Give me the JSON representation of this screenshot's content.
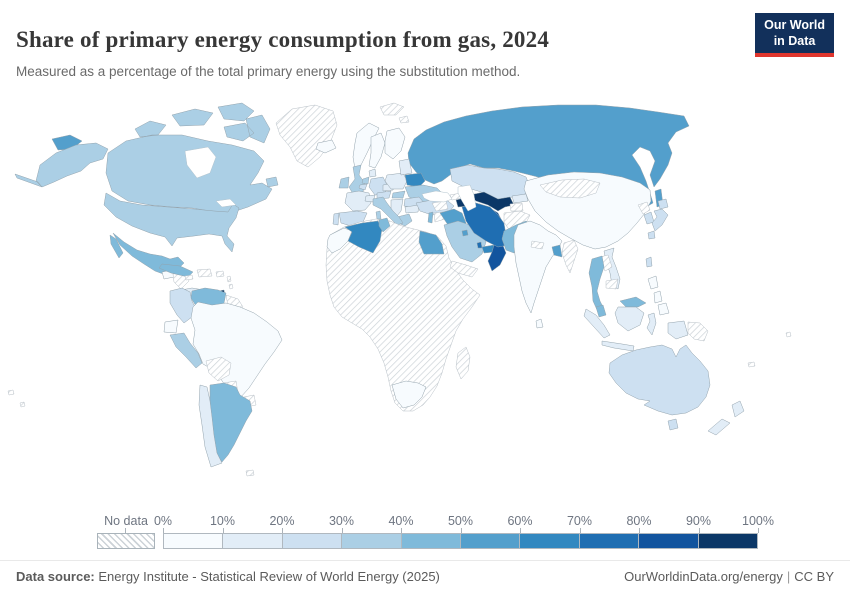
{
  "header": {
    "title": "Share of primary energy consumption from gas, 2024",
    "subtitle": "Measured as a percentage of the total primary energy using the substitution method.",
    "logo": {
      "line1": "Our World",
      "line2": "in Data"
    }
  },
  "legend": {
    "no_data_label": "No data",
    "ticks": [
      "0%",
      "10%",
      "20%",
      "30%",
      "40%",
      "50%",
      "60%",
      "70%",
      "80%",
      "90%",
      "100%"
    ]
  },
  "footer": {
    "source_label": "Data source:",
    "source_text": " Energy Institute - Statistical Review of World Energy (2025)",
    "site": "OurWorldinData.org/energy",
    "separator": "|",
    "license": "CC BY"
  },
  "chart_data": {
    "type": "heatmap",
    "variant": "choropleth-world-map",
    "title": "Share of primary energy consumption from gas, 2024",
    "unit": "%",
    "color_scale": {
      "min": 0,
      "max": 100,
      "step": 10,
      "colors": [
        "#f7fbfe",
        "#e2edf7",
        "#cde0f1",
        "#abcfe5",
        "#7fbada",
        "#539fcc",
        "#3288c0",
        "#1f6eb2",
        "#12549e",
        "#0b3767"
      ],
      "no_data_style": "gray-diagonal-hatch"
    },
    "countries": [
      {
        "name": "russia",
        "value": 55
      },
      {
        "name": "canada",
        "value": 37
      },
      {
        "name": "usa",
        "value": 34
      },
      {
        "name": "greenland",
        "value": null
      },
      {
        "name": "svalbard",
        "value": null
      },
      {
        "name": "iceland",
        "value": 1
      },
      {
        "name": "mexico",
        "value": 45
      },
      {
        "name": "guatemala",
        "value": 4
      },
      {
        "name": "honduras-nicaragua",
        "value": null
      },
      {
        "name": "costa-rica-panama",
        "value": 12
      },
      {
        "name": "cuba",
        "value": 46
      },
      {
        "name": "haiti-dominican-republic",
        "value": null
      },
      {
        "name": "jamaica",
        "value": null
      },
      {
        "name": "puerto-rico",
        "value": null
      },
      {
        "name": "lesser-antilles",
        "value": null
      },
      {
        "name": "trinidad-and-tobago",
        "value": 93
      },
      {
        "name": "colombia",
        "value": 25
      },
      {
        "name": "venezuela",
        "value": 46
      },
      {
        "name": "guyana-suriname",
        "value": null
      },
      {
        "name": "ecuador",
        "value": 5
      },
      {
        "name": "peru",
        "value": 33
      },
      {
        "name": "brazil",
        "value": 8
      },
      {
        "name": "bolivia",
        "value": null
      },
      {
        "name": "paraguay",
        "value": null
      },
      {
        "name": "uruguay",
        "value": null
      },
      {
        "name": "argentina",
        "value": 48
      },
      {
        "name": "chile",
        "value": 14
      },
      {
        "name": "falkland-islands",
        "value": null
      },
      {
        "name": "norway",
        "value": 2
      },
      {
        "name": "sweden",
        "value": 2
      },
      {
        "name": "finland",
        "value": 6
      },
      {
        "name": "denmark",
        "value": 12
      },
      {
        "name": "united-kingdom",
        "value": 37
      },
      {
        "name": "ireland",
        "value": 32
      },
      {
        "name": "france",
        "value": 15
      },
      {
        "name": "spain",
        "value": 22
      },
      {
        "name": "portugal",
        "value": 24
      },
      {
        "name": "germany",
        "value": 24
      },
      {
        "name": "netherlands",
        "value": 36
      },
      {
        "name": "belgium",
        "value": 28
      },
      {
        "name": "switzerland",
        "value": 11
      },
      {
        "name": "austria",
        "value": 20
      },
      {
        "name": "czechia",
        "value": 18
      },
      {
        "name": "poland",
        "value": 16
      },
      {
        "name": "baltic-states",
        "value": 12
      },
      {
        "name": "belarus",
        "value": 62
      },
      {
        "name": "ukraine",
        "value": 34
      },
      {
        "name": "romania",
        "value": 28
      },
      {
        "name": "hungary",
        "value": 33
      },
      {
        "name": "balkans",
        "value": 15
      },
      {
        "name": "bulgaria",
        "value": 13
      },
      {
        "name": "greece",
        "value": 32
      },
      {
        "name": "italy",
        "value": 36
      },
      {
        "name": "turkey",
        "value": 26
      },
      {
        "name": "africa-other",
        "value": null
      },
      {
        "name": "morocco",
        "value": 3
      },
      {
        "name": "algeria",
        "value": 68
      },
      {
        "name": "tunisia",
        "value": 45
      },
      {
        "name": "egypt",
        "value": 57
      },
      {
        "name": "south-africa",
        "value": 3
      },
      {
        "name": "madagascar",
        "value": null
      },
      {
        "name": "syria",
        "value": null
      },
      {
        "name": "israel",
        "value": 46
      },
      {
        "name": "jordan",
        "value": null
      },
      {
        "name": "iraq",
        "value": 55
      },
      {
        "name": "saudi-arabia",
        "value": 33
      },
      {
        "name": "kuwait",
        "value": 55
      },
      {
        "name": "qatar",
        "value": 78
      },
      {
        "name": "united-arab-emirates",
        "value": 65
      },
      {
        "name": "oman",
        "value": 88
      },
      {
        "name": "yemen",
        "value": null
      },
      {
        "name": "georgia",
        "value": null
      },
      {
        "name": "azerbaijan",
        "value": 92
      },
      {
        "name": "kazakhstan",
        "value": 22
      },
      {
        "name": "uzbekistan",
        "value": 92
      },
      {
        "name": "turkmenistan",
        "value": 84
      },
      {
        "name": "kyrgyzstan",
        "value": 12
      },
      {
        "name": "tajikistan",
        "value": null
      },
      {
        "name": "afghanistan",
        "value": null
      },
      {
        "name": "iran",
        "value": 75
      },
      {
        "name": "pakistan",
        "value": 40
      },
      {
        "name": "india",
        "value": 6
      },
      {
        "name": "nepal",
        "value": null
      },
      {
        "name": "bangladesh",
        "value": 55
      },
      {
        "name": "sri-lanka",
        "value": 0
      },
      {
        "name": "myanmar",
        "value": null
      },
      {
        "name": "china",
        "value": 6
      },
      {
        "name": "mongolia",
        "value": null
      },
      {
        "name": "north-korea",
        "value": null
      },
      {
        "name": "south-korea",
        "value": 26
      },
      {
        "name": "japan",
        "value": 21
      },
      {
        "name": "taiwan",
        "value": 26
      },
      {
        "name": "vietnam",
        "value": 11
      },
      {
        "name": "laos",
        "value": null
      },
      {
        "name": "cambodia",
        "value": null
      },
      {
        "name": "thailand",
        "value": 42
      },
      {
        "name": "malaysia",
        "value": 40
      },
      {
        "name": "indonesia",
        "value": 14
      },
      {
        "name": "philippines",
        "value": 3
      },
      {
        "name": "papua-new-guinea",
        "value": null
      },
      {
        "name": "australia",
        "value": 26
      },
      {
        "name": "new-zealand",
        "value": 15
      },
      {
        "name": "pacific-islands",
        "value": null
      }
    ]
  }
}
